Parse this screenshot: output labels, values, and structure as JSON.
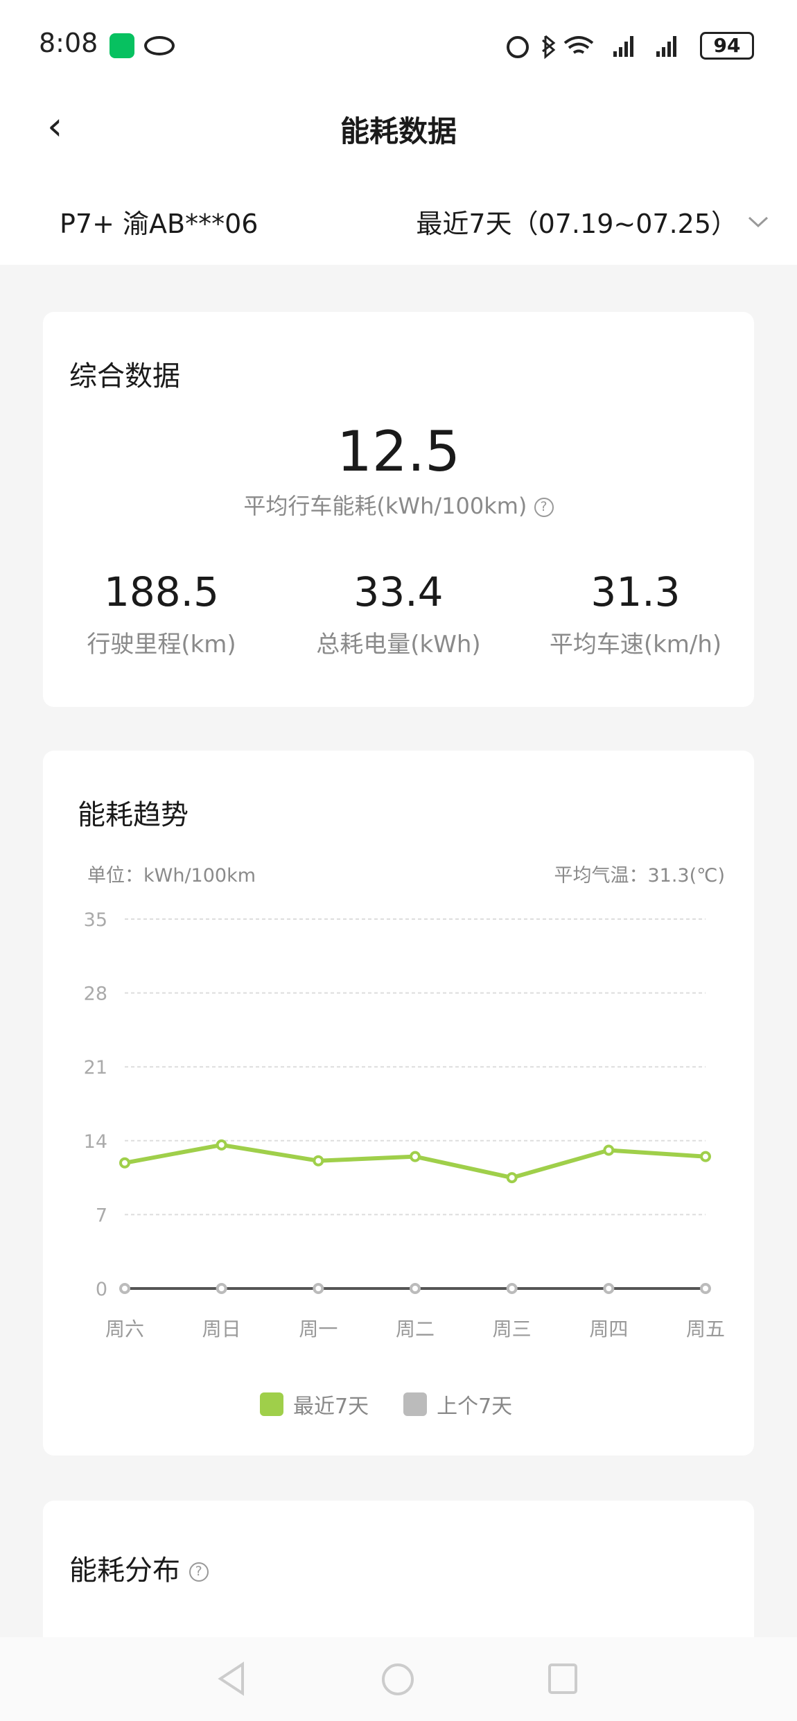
{
  "status_bar": {
    "time": "8:08",
    "battery": "94"
  },
  "header": {
    "title": "能耗数据",
    "vehicle": "P7+ 渝AB***06",
    "period": "最近7天（07.19~07.25）"
  },
  "summary": {
    "title": "综合数据",
    "avg_value": "12.5",
    "avg_label": "平均行车能耗(kWh/100km)",
    "stats": [
      {
        "value": "188.5",
        "label": "行驶里程(km)"
      },
      {
        "value": "33.4",
        "label": "总耗电量(kWh)"
      },
      {
        "value": "31.3",
        "label": "平均车速(km/h)"
      }
    ]
  },
  "trend": {
    "title": "能耗趋势",
    "unit": "单位：kWh/100km",
    "temp": "平均气温：31.3(℃)"
  },
  "chart_data": {
    "type": "line",
    "categories": [
      "周六",
      "周日",
      "周一",
      "周二",
      "周三",
      "周四",
      "周五"
    ],
    "series": [
      {
        "name": "最近7天",
        "color": "#9fcf4a",
        "values": [
          11.9,
          13.6,
          12.1,
          12.5,
          10.5,
          13.1,
          12.5
        ]
      },
      {
        "name": "上个7天",
        "color": "#bbbbbb",
        "values": [
          0,
          0,
          0,
          0,
          0,
          0,
          0
        ]
      }
    ],
    "yticks": [
      0,
      7,
      14,
      21,
      28,
      35
    ],
    "ylim": [
      0,
      35
    ],
    "grid": true,
    "legend": "bottom"
  },
  "distribution": {
    "title": "能耗分布"
  }
}
